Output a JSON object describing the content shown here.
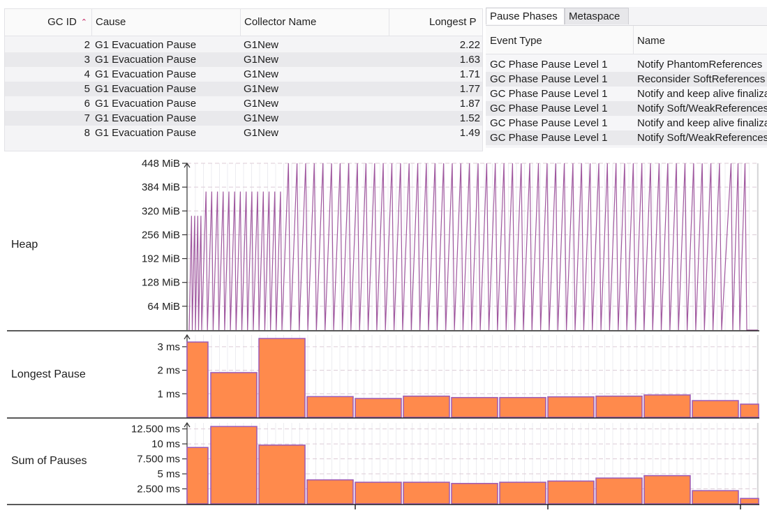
{
  "gc_table": {
    "columns": [
      "GC ID",
      "Cause",
      "Collector Name",
      "Longest P"
    ],
    "rows": [
      {
        "id": "2",
        "cause": "G1 Evacuation Pause",
        "collector": "G1New",
        "longest": "2.22"
      },
      {
        "id": "3",
        "cause": "G1 Evacuation Pause",
        "collector": "G1New",
        "longest": "1.63"
      },
      {
        "id": "4",
        "cause": "G1 Evacuation Pause",
        "collector": "G1New",
        "longest": "1.71"
      },
      {
        "id": "5",
        "cause": "G1 Evacuation Pause",
        "collector": "G1New",
        "longest": "1.77"
      },
      {
        "id": "6",
        "cause": "G1 Evacuation Pause",
        "collector": "G1New",
        "longest": "1.87"
      },
      {
        "id": "7",
        "cause": "G1 Evacuation Pause",
        "collector": "G1New",
        "longest": "1.52"
      },
      {
        "id": "8",
        "cause": "G1 Evacuation Pause",
        "collector": "G1New",
        "longest": "1.49"
      }
    ],
    "sort_icon": "caret-up-icon"
  },
  "phases": {
    "tabs": [
      "Pause Phases",
      "Metaspace"
    ],
    "active_tab": "Pause Phases",
    "columns": [
      "Event Type",
      "Name"
    ],
    "rows": [
      {
        "type": "GC Phase Pause Level 1",
        "name": "Notify PhantomReferences"
      },
      {
        "type": "GC Phase Pause Level 1",
        "name": "Reconsider SoftReferences"
      },
      {
        "type": "GC Phase Pause Level 1",
        "name": "Notify and keep alive finalizable"
      },
      {
        "type": "GC Phase Pause Level 1",
        "name": "Notify Soft/WeakReferences"
      },
      {
        "type": "GC Phase Pause Level 1",
        "name": "Notify and keep alive finalizable"
      },
      {
        "type": "GC Phase Pause Level 1",
        "name": "Notify Soft/WeakReferences"
      }
    ]
  },
  "chart_data": [
    {
      "type": "line",
      "title": "Heap",
      "ylabel": "Heap",
      "yticks": [
        "64 MiB",
        "128 MiB",
        "192 MiB",
        "256 MiB",
        "320 MiB",
        "384 MiB",
        "448 MiB"
      ],
      "ytick_values": [
        64,
        128,
        192,
        256,
        320,
        384,
        448
      ],
      "ylim": [
        0,
        448
      ],
      "unit": "MiB",
      "color": "#a0589f",
      "segments": [
        {
          "count": 4,
          "peak": 307
        },
        {
          "count": 14,
          "peak": 372
        },
        {
          "count": 51,
          "peak": 448
        },
        {
          "count": 3,
          "peak": 448
        }
      ],
      "note_last_value": 0
    },
    {
      "type": "bar",
      "title": "Longest Pause",
      "ylabel": "Longest Pause",
      "yticks": [
        "1 ms",
        "2 ms",
        "3 ms"
      ],
      "ytick_values": [
        1,
        2,
        3
      ],
      "ylim": [
        0,
        3.5
      ],
      "unit": "ms",
      "values": [
        3.2,
        1.9,
        3.35,
        0.88,
        0.8,
        0.9,
        0.84,
        0.84,
        0.87,
        0.9,
        0.95,
        0.71,
        0.56
      ],
      "color": "#ff8a4c"
    },
    {
      "type": "bar",
      "title": "Sum of Pauses",
      "ylabel": "Sum of Pauses",
      "yticks": [
        "2.500 ms",
        "5 ms",
        "7.500 ms",
        "10 ms",
        "12.500 ms"
      ],
      "ytick_values": [
        2.5,
        5,
        7.5,
        10,
        12.5
      ],
      "ylim": [
        0,
        13.5
      ],
      "unit": "ms",
      "values": [
        9.4,
        12.9,
        9.8,
        4.0,
        3.6,
        3.6,
        3.4,
        3.6,
        3.8,
        4.3,
        4.7,
        2.2,
        0.9
      ],
      "color": "#ff8a4c"
    }
  ],
  "chart_labels": {
    "heap": "Heap",
    "longest": "Longest Pause",
    "sum": "Sum of Pauses"
  },
  "colors": {
    "heap_line": "#a0589f",
    "bar_fill": "#ff8a4c",
    "bar_border": "#9b59b6",
    "grid": "#dccbd6"
  }
}
